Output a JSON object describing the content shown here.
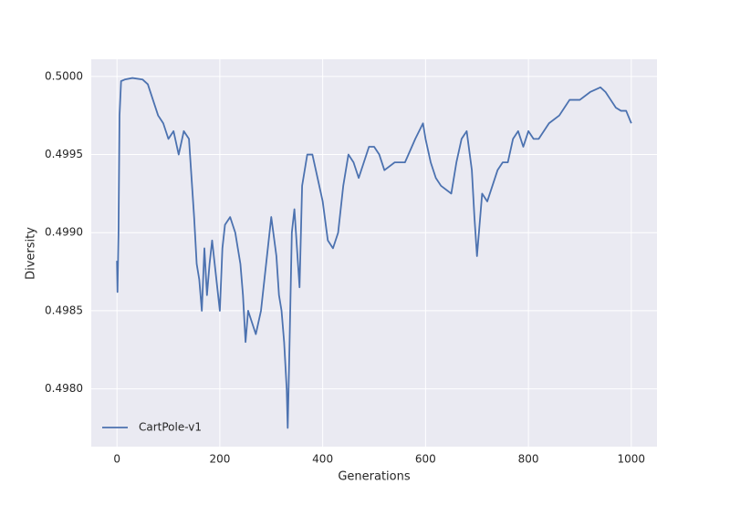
{
  "chart_data": {
    "type": "line",
    "x_label": "Generations",
    "y_label": "Diversity",
    "xlim": [
      -50,
      1050
    ],
    "ylim": [
      0.49763,
      0.50011
    ],
    "xticks": [
      0,
      200,
      400,
      600,
      800,
      1000
    ],
    "yticks": [
      {
        "value": 0.498,
        "label": "0.4980"
      },
      0.4985,
      {
        "value": 0.499,
        "label": "0.4990"
      },
      0.4995,
      {
        "value": 0.5,
        "label": "0.5000"
      }
    ],
    "grid": true,
    "legend": "lower left",
    "series": [
      {
        "name": "CartPole-v1",
        "color": "#4c72b0",
        "x": [
          0,
          1,
          3,
          5,
          8,
          15,
          30,
          50,
          60,
          70,
          80,
          90,
          100,
          110,
          120,
          130,
          140,
          150,
          155,
          160,
          165,
          170,
          175,
          180,
          185,
          190,
          200,
          205,
          210,
          220,
          230,
          240,
          245,
          250,
          255,
          260,
          270,
          280,
          290,
          300,
          310,
          315,
          320,
          325,
          330,
          332,
          335,
          340,
          345,
          350,
          355,
          360,
          370,
          380,
          390,
          400,
          410,
          420,
          430,
          440,
          450,
          460,
          470,
          480,
          490,
          500,
          510,
          520,
          540,
          560,
          580,
          595,
          600,
          610,
          620,
          630,
          650,
          660,
          670,
          680,
          690,
          695,
          700,
          705,
          710,
          720,
          740,
          750,
          760,
          770,
          780,
          790,
          800,
          810,
          820,
          840,
          860,
          870,
          880,
          900,
          920,
          940,
          950,
          960,
          970,
          980,
          990,
          1000
        ],
        "values": [
          0.49882,
          0.49862,
          0.499,
          0.49975,
          0.49997,
          0.49998,
          0.49999,
          0.49998,
          0.49995,
          0.49985,
          0.49975,
          0.4997,
          0.4996,
          0.49965,
          0.4995,
          0.49965,
          0.4996,
          0.4991,
          0.4988,
          0.4987,
          0.4985,
          0.4989,
          0.4986,
          0.4988,
          0.49895,
          0.4988,
          0.4985,
          0.4989,
          0.49905,
          0.4991,
          0.499,
          0.4988,
          0.4986,
          0.4983,
          0.4985,
          0.49845,
          0.49835,
          0.4985,
          0.4988,
          0.4991,
          0.49885,
          0.4986,
          0.4985,
          0.4983,
          0.498,
          0.49775,
          0.4982,
          0.499,
          0.49915,
          0.4989,
          0.49865,
          0.4993,
          0.4995,
          0.4995,
          0.49935,
          0.4992,
          0.49895,
          0.4989,
          0.499,
          0.4993,
          0.4995,
          0.49945,
          0.49935,
          0.49945,
          0.49955,
          0.49955,
          0.4995,
          0.4994,
          0.49945,
          0.49945,
          0.4996,
          0.4997,
          0.4996,
          0.49945,
          0.49935,
          0.4993,
          0.49925,
          0.49945,
          0.4996,
          0.49965,
          0.4994,
          0.4991,
          0.49885,
          0.49905,
          0.49925,
          0.4992,
          0.4994,
          0.49945,
          0.49945,
          0.4996,
          0.49965,
          0.49955,
          0.49965,
          0.4996,
          0.4996,
          0.4997,
          0.49975,
          0.4998,
          0.49985,
          0.49985,
          0.4999,
          0.49993,
          0.4999,
          0.49985,
          0.4998,
          0.49978,
          0.49978,
          0.4997
        ]
      }
    ]
  }
}
